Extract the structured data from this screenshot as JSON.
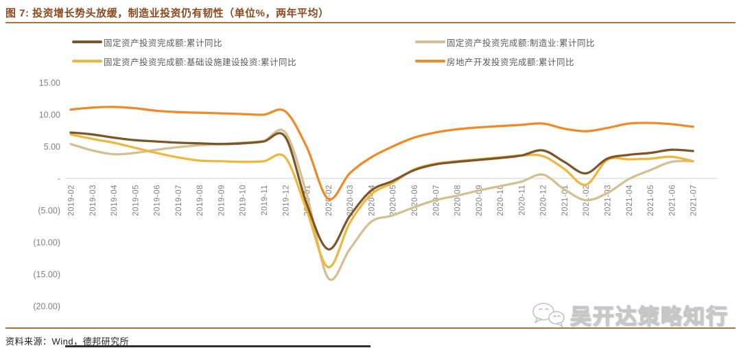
{
  "title": "图 7: 投资增长势头放缓，制造业投资仍有韧性（单位%，两年平均）",
  "source_note": "资料来源：Wind，德邦研究所",
  "watermark": {
    "label": "吴开达策略知行",
    "icon": "wechat-icon"
  },
  "colors": {
    "title_brown": "#8a4a1d",
    "rule_brown": "#a9713c",
    "axis_text_gray": "#7f7f7f",
    "legend_text_gray": "#595959",
    "zero_line_gray": "#d9d9d9"
  },
  "chart_data": {
    "type": "line",
    "title": "投资增长势头放缓，制造业投资仍有韧性（单位%，两年平均）",
    "xlabel": "",
    "ylabel": "",
    "ylim": [
      -20,
      15
    ],
    "grid": "zero-line-only",
    "legend_position": "top-two-columns",
    "legend_columns": [
      [
        0,
        2
      ],
      [
        1,
        3
      ]
    ],
    "draw_order": [
      1,
      2,
      0,
      3
    ],
    "x": [
      "2019-02",
      "2019-03",
      "2019-04",
      "2019-05",
      "2019-06",
      "2019-07",
      "2019-08",
      "2019-09",
      "2019-10",
      "2019-11",
      "2019-12",
      "2020-01",
      "2020-02",
      "2020-03",
      "2020-04",
      "2020-05",
      "2020-06",
      "2020-07",
      "2020-08",
      "2020-09",
      "2020-10",
      "2020-11",
      "2020-12",
      "2021-01",
      "2021-02",
      "2021-03",
      "2021-04",
      "2021-05",
      "2021-06",
      "2021-07"
    ],
    "yticks": {
      "values": [
        15,
        10,
        5,
        0,
        -5,
        -10,
        -15,
        -20
      ],
      "labels": [
        "15.00",
        "10.00",
        "5.00",
        "-",
        "(5.00)",
        "(10.00)",
        "(15.00)",
        "(20.00)"
      ]
    },
    "series": [
      {
        "name": "固定资产投资完成额:累计同比",
        "color": "#7c5628",
        "values": [
          7.2,
          6.9,
          6.4,
          6.0,
          5.8,
          5.6,
          5.5,
          5.4,
          5.5,
          5.8,
          6.5,
          -4.0,
          -11.1,
          -5.9,
          -1.9,
          -0.4,
          1.3,
          2.2,
          2.6,
          2.9,
          3.2,
          3.6,
          4.4,
          2.6,
          0.8,
          3.1,
          3.7,
          4.0,
          4.5,
          4.3
        ]
      },
      {
        "name": "固定资产投资完成额:制造业:累计同比",
        "color": "#d3bf90",
        "values": [
          5.4,
          4.4,
          3.8,
          4.0,
          4.5,
          4.9,
          5.2,
          5.4,
          5.6,
          5.9,
          7.2,
          -2.5,
          -15.6,
          -11.1,
          -6.8,
          -5.8,
          -4.5,
          -3.4,
          -2.7,
          -1.9,
          -1.2,
          -0.5,
          0.6,
          -1.7,
          -3.4,
          -2.3,
          -0.1,
          1.3,
          2.6,
          2.7
        ]
      },
      {
        "name": "固定资产投资完成额:基础设施建设投资:累计同比",
        "color": "#edb63c",
        "values": [
          6.9,
          6.2,
          5.6,
          4.8,
          4.0,
          3.3,
          2.8,
          2.7,
          2.6,
          2.7,
          3.3,
          -5.0,
          -13.9,
          -7.0,
          -2.5,
          -0.7,
          1.4,
          2.3,
          2.7,
          3.0,
          3.3,
          3.6,
          3.5,
          1.5,
          -1.0,
          2.9,
          3.0,
          3.1,
          3.4,
          2.7
        ]
      },
      {
        "name": "房地产开发投资完成额:累计同比",
        "color": "#ee8b28",
        "values": [
          10.8,
          11.1,
          11.2,
          11.0,
          10.6,
          10.4,
          10.3,
          10.2,
          10.1,
          10.0,
          10.5,
          4.9,
          -3.2,
          0.8,
          3.3,
          5.0,
          6.4,
          7.2,
          7.7,
          8.0,
          8.2,
          8.4,
          8.6,
          7.8,
          7.4,
          7.9,
          8.6,
          8.7,
          8.5,
          8.1
        ]
      }
    ]
  }
}
